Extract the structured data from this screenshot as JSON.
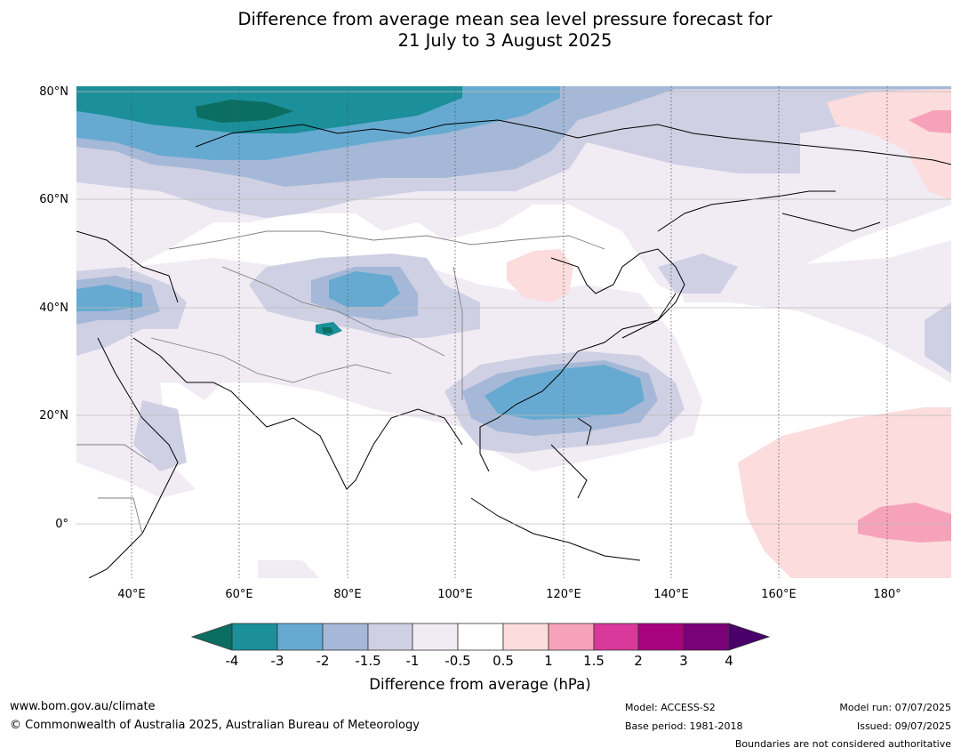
{
  "title": {
    "line1": "Difference from average mean sea level pressure forecast for",
    "line2": "21 July to 3 August 2025"
  },
  "map": {
    "lon_ticks": [
      "40°E",
      "60°E",
      "80°E",
      "100°E",
      "120°E",
      "140°E",
      "160°E",
      "180°"
    ],
    "lat_ticks": [
      "80°N",
      "60°N",
      "40°N",
      "20°N",
      "0°"
    ],
    "extent": {
      "lon_min": 30,
      "lon_max": 192,
      "lat_min": -10,
      "lat_max": 81
    }
  },
  "legend": {
    "title": "Difference from average (hPa)",
    "tick_labels": [
      "-4",
      "-3",
      "-2",
      "-1.5",
      "-1",
      "-0.5",
      "0.5",
      "1",
      "1.5",
      "2",
      "3",
      "4"
    ],
    "colors": [
      "#0c6e62",
      "#1b8f9a",
      "#67aad1",
      "#a5b8d7",
      "#cfd0e3",
      "#f1ebf4",
      "#ffffff",
      "#fcdcdc",
      "#f7a2bb",
      "#d8399a",
      "#a8037e",
      "#7a0177",
      "#49006a"
    ]
  },
  "footer": {
    "website": "www.bom.gov.au/climate",
    "copyright": "© Commonwealth of Australia 2025, Australian Bureau of Meteorology",
    "model": "Model: ACCESS-S2",
    "base_period": "Base period: 1981-2018",
    "model_run": "Model run: 07/07/2025",
    "issued": "Issued: 09/07/2025",
    "disclaimer": "Boundaries are not considered authoritative"
  }
}
